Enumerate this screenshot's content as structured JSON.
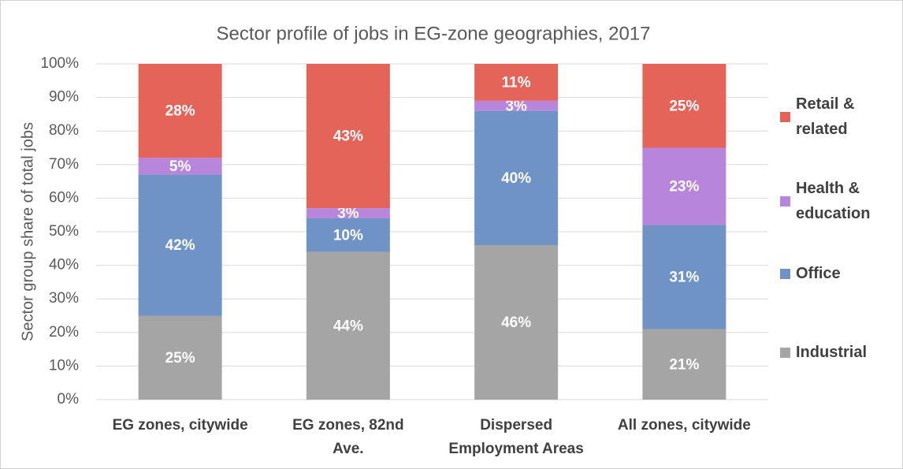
{
  "chart_data": {
    "type": "stacked_bar",
    "title": "Sector profile of jobs in EG-zone geographies, 2017",
    "y_label": "Sector group share of total jobs",
    "categories": [
      "EG zones, citywide",
      "EG zones, 82nd Ave.",
      "Dispersed Employment Areas",
      "All zones, citywide"
    ],
    "series": [
      {
        "name": "Industrial",
        "color": "#a5a5a5",
        "values": [
          25,
          44,
          46,
          21
        ],
        "value_labels": [
          "25%",
          "44%",
          "46%",
          "21%"
        ]
      },
      {
        "name": "Office",
        "color": "#7093c5",
        "values": [
          42,
          10,
          40,
          31
        ],
        "value_labels": [
          "42%",
          "10%",
          "40%",
          "31%"
        ]
      },
      {
        "name": "Health & education",
        "color": "#b885dd",
        "values": [
          5,
          3,
          3,
          23
        ],
        "value_labels": [
          "5%",
          "3%",
          "3%",
          "23%"
        ]
      },
      {
        "name": "Retail & related",
        "color": "#e5645a",
        "values": [
          28,
          43,
          11,
          25
        ],
        "value_labels": [
          "28%",
          "43%",
          "11%",
          "25%"
        ]
      }
    ],
    "ylim": [
      0,
      100
    ],
    "yticks": [
      {
        "value": 0,
        "label": "0%"
      },
      {
        "value": 10,
        "label": "10%"
      },
      {
        "value": 20,
        "label": "20%"
      },
      {
        "value": 30,
        "label": "30%"
      },
      {
        "value": 40,
        "label": "40%"
      },
      {
        "value": 50,
        "label": "50%"
      },
      {
        "value": 60,
        "label": "60%"
      },
      {
        "value": 70,
        "label": "70%"
      },
      {
        "value": 80,
        "label": "80%"
      },
      {
        "value": 90,
        "label": "90%"
      },
      {
        "value": 100,
        "label": "100%"
      }
    ],
    "grid": true,
    "legend": "right"
  }
}
